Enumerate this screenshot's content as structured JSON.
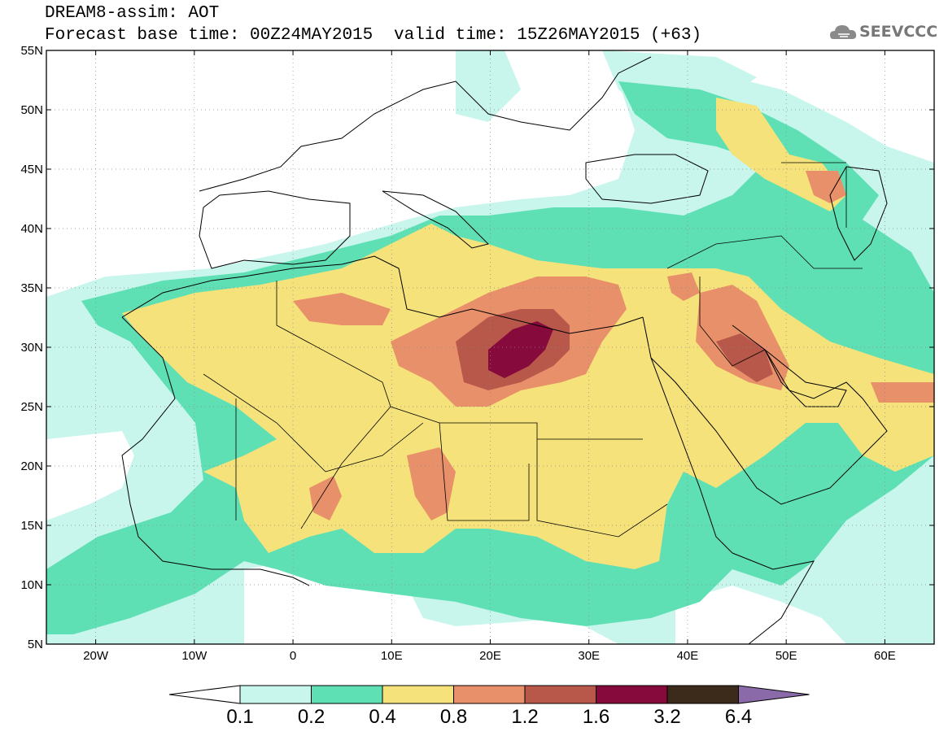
{
  "header": {
    "title_line1": "DREAM8-assim: AOT",
    "title_line2": "Forecast base time: 00Z24MAY2015",
    "title_line3": "valid time: 15Z26MAY2015 (+63)",
    "logo_text": "SEEVCCC",
    "logo_icon": "cloud-icon"
  },
  "map": {
    "lat_labels": [
      "55N",
      "50N",
      "45N",
      "40N",
      "35N",
      "30N",
      "25N",
      "20N",
      "15N",
      "10N",
      "5N"
    ],
    "lon_labels": [
      "20W",
      "10W",
      "0",
      "10E",
      "20E",
      "30E",
      "40E",
      "50E",
      "60E"
    ],
    "lon_range": [
      -25,
      65
    ],
    "lat_range": [
      5,
      55
    ]
  },
  "colorbar": {
    "labels": [
      "0.1",
      "0.2",
      "0.4",
      "0.8",
      "1.2",
      "1.6",
      "3.2",
      "6.4"
    ],
    "colors": [
      "#ffffff",
      "#c8f5ec",
      "#5fe0b4",
      "#f5e27a",
      "#e8906a",
      "#b8584a",
      "#860a3c",
      "#3c2a1a",
      "#8a6aa8"
    ]
  }
}
